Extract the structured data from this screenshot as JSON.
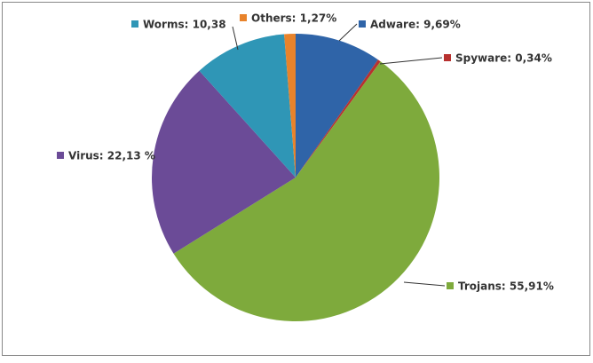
{
  "chart_data": {
    "type": "pie",
    "values": [
      9.69,
      0.34,
      55.91,
      22.13,
      10.38,
      1.27
    ],
    "value_labels": [
      "Adware: 9,69%",
      "Spyware: 0,34%",
      "Trojans: 55,91%",
      "Virus: 22,13 %",
      "Worms: 10,38",
      "Others: 1,27%"
    ],
    "colors": [
      "#2f64a8",
      "#b8312f",
      "#7eaa3c",
      "#6b4b97",
      "#2f96b6",
      "#e8832b"
    ]
  }
}
